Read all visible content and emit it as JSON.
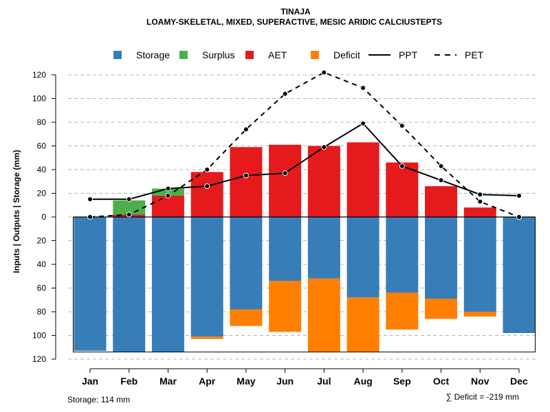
{
  "chart_data": {
    "type": "bar",
    "title": "TINAJA",
    "subtitle": "LOAMY-SKELETAL, MIXED, SUPERACTIVE, MESIC ARIDIC CALCIUSTEPTS",
    "ylabel": "Inputs | Outputs | Storage    (mm)",
    "ylim": [
      -120,
      130
    ],
    "yticks": [
      120,
      100,
      80,
      60,
      40,
      20,
      0,
      -20,
      -40,
      -60,
      -80,
      -100,
      -120
    ],
    "ytick_labels": [
      "120",
      "100",
      "80",
      "60",
      "40",
      "20",
      "0",
      "20",
      "40",
      "60",
      "80",
      "100",
      "120"
    ],
    "categories": [
      "Jan",
      "Feb",
      "Mar",
      "Apr",
      "May",
      "Jun",
      "Jul",
      "Aug",
      "Sep",
      "Oct",
      "Nov",
      "Dec"
    ],
    "legend": [
      {
        "name": "Storage",
        "kind": "box",
        "color": "#377EB8"
      },
      {
        "name": "Surplus",
        "kind": "box",
        "color": "#4DAF4A"
      },
      {
        "name": "AET",
        "kind": "box",
        "color": "#E41A1C"
      },
      {
        "name": "Deficit",
        "kind": "box",
        "color": "#FF7F00"
      },
      {
        "name": "PPT",
        "kind": "solid",
        "color": "#000000"
      },
      {
        "name": "PET",
        "kind": "dashed",
        "color": "#000000"
      }
    ],
    "series": [
      {
        "name": "AET",
        "color": "#E41A1C",
        "values": [
          0,
          2,
          18,
          38,
          59,
          61,
          60,
          63,
          46,
          26,
          8,
          0
        ]
      },
      {
        "name": "Surplus",
        "color": "#4DAF4A",
        "values": [
          0,
          12,
          6,
          0,
          0,
          0,
          0,
          0,
          0,
          0,
          0,
          0
        ]
      },
      {
        "name": "Storage",
        "color": "#377EB8",
        "values": [
          113,
          114,
          114,
          101,
          78,
          54,
          52,
          68,
          64,
          69,
          80,
          98
        ]
      },
      {
        "name": "Deficit",
        "color": "#FF7F00",
        "values": [
          0,
          0,
          0,
          2,
          14,
          43,
          62,
          46,
          31,
          17,
          4,
          0
        ]
      },
      {
        "name": "PPT",
        "color": "#000000",
        "values": [
          15,
          15,
          24,
          26,
          35,
          37,
          59,
          79,
          43,
          31,
          19,
          18
        ]
      },
      {
        "name": "PET",
        "color": "#000000",
        "values": [
          0,
          2,
          18,
          40,
          74,
          104,
          122,
          109,
          77,
          43,
          13,
          0
        ]
      }
    ],
    "storage_capacity": 114,
    "footer_left": "Storage: 114 mm",
    "footer_right": "∑ Deficit = -219 mm",
    "grid": true
  }
}
